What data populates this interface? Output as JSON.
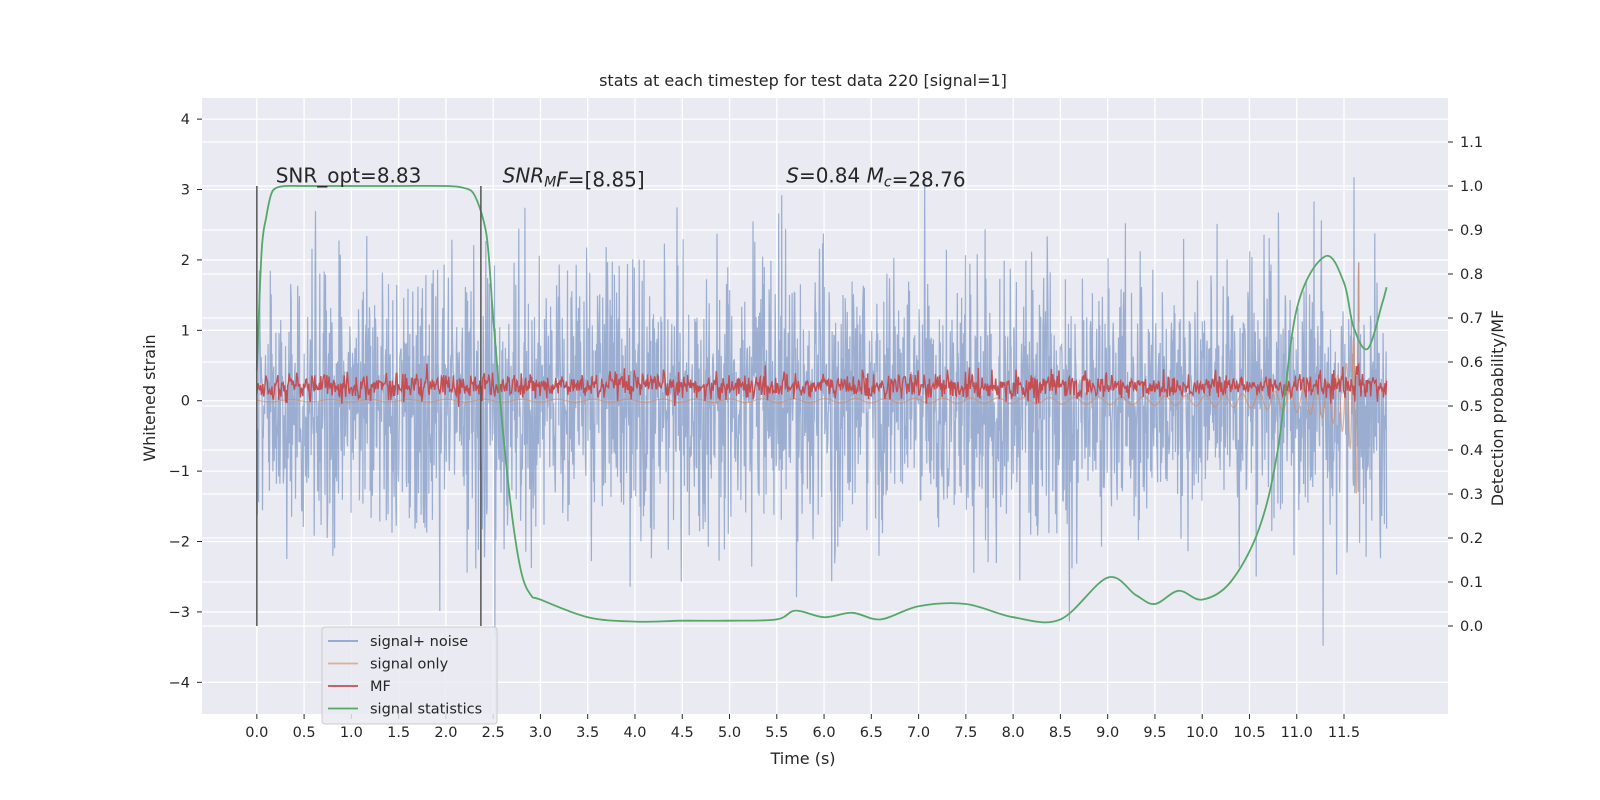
{
  "chart_data": {
    "type": "line",
    "title": "stats at each timestep for test data 220 [signal=1]",
    "xlabel": "Time (s)",
    "ylabel": "Whitened strain",
    "y2label": "Detection probability/MF",
    "xlim": [
      -0.58,
      12.6
    ],
    "ylim": [
      -4.45,
      4.3
    ],
    "y2lim": [
      -0.2,
      1.2
    ],
    "grid": true,
    "background": "#EAEAF2",
    "x_ticks": [
      "0.0",
      "0.5",
      "1.0",
      "1.5",
      "2.0",
      "2.5",
      "3.0",
      "3.5",
      "4.0",
      "4.5",
      "5.0",
      "5.5",
      "6.0",
      "6.5",
      "7.0",
      "7.5",
      "8.0",
      "8.5",
      "9.0",
      "9.5",
      "10.0",
      "10.5",
      "11.0",
      "11.5"
    ],
    "y_ticks": [
      "4",
      "3",
      "2",
      "1",
      "0",
      "−1",
      "−2",
      "−3",
      "−4"
    ],
    "y2_ticks": [
      "1.1",
      "1.0",
      "0.9",
      "0.8",
      "0.7",
      "0.6",
      "0.5",
      "0.4",
      "0.3",
      "0.2",
      "0.1",
      "0.0"
    ],
    "annotations": [
      {
        "segments": [
          {
            "text": "SNR_opt=8.83",
            "italic": false
          }
        ],
        "x": 0.2,
        "y": 3.1
      },
      {
        "segments": [
          {
            "text": "SNR",
            "italic": true
          },
          {
            "text": "M",
            "italic": true,
            "sub": true
          },
          {
            "text": "F",
            "italic": true
          },
          {
            "text": "=[8.85]",
            "italic": false
          }
        ],
        "x": 2.6,
        "y": 3.1
      },
      {
        "segments": [
          {
            "text": "S",
            "italic": true
          },
          {
            "text": "=0.84   ",
            "italic": false
          },
          {
            "text": "M",
            "italic": true
          },
          {
            "text": "c",
            "italic": true,
            "sub": true
          },
          {
            "text": "=28.76",
            "italic": false
          }
        ],
        "x": 5.6,
        "y": 3.1
      }
    ],
    "vlines": [
      {
        "x": 0.0,
        "ymin": -3.2,
        "ymax": 3.05,
        "color": "#555555"
      },
      {
        "x": 2.37,
        "ymin": -3.2,
        "ymax": 3.05,
        "color": "#555555"
      }
    ],
    "series": [
      {
        "name": "signal+ noise",
        "color": "#4C72B0",
        "alpha": 0.5,
        "axis": "left",
        "style": "noise",
        "t_start": 0.0,
        "t_end": 11.95,
        "sigma": 1.0
      },
      {
        "name": "signal only",
        "color": "#DD8452",
        "alpha": 0.6,
        "axis": "left",
        "style": "chirp",
        "t_start": 0.0,
        "t_end": 11.66,
        "peak_amplitude": 2.0
      },
      {
        "name": "MF",
        "color": "#C44E52",
        "axis": "right",
        "style": "band",
        "t_start": 0.0,
        "t_end": 11.95,
        "center": 0.545,
        "halfwidth": 0.03,
        "peak": {
          "x": 11.65,
          "y": 0.58
        }
      },
      {
        "name": "signal statistics",
        "color": "#55A868",
        "axis": "right",
        "style": "line",
        "x": [
          0.0,
          0.05,
          0.1,
          0.15,
          0.2,
          0.3,
          0.5,
          1.0,
          1.5,
          2.0,
          2.2,
          2.3,
          2.4,
          2.45,
          2.5,
          2.6,
          2.7,
          2.8,
          2.9,
          3.0,
          3.5,
          4.0,
          4.5,
          5.0,
          5.5,
          5.7,
          6.0,
          6.3,
          6.6,
          7.0,
          7.5,
          8.0,
          8.5,
          9.0,
          9.3,
          9.5,
          9.75,
          10.0,
          10.3,
          10.6,
          10.8,
          11.0,
          11.3,
          11.5,
          11.6,
          11.75,
          11.9,
          11.95
        ],
        "y": [
          0.58,
          0.85,
          0.93,
          0.98,
          0.995,
          1.0,
          1.0,
          1.0,
          1.0,
          1.0,
          0.995,
          0.98,
          0.92,
          0.85,
          0.7,
          0.45,
          0.25,
          0.12,
          0.07,
          0.06,
          0.02,
          0.01,
          0.012,
          0.012,
          0.015,
          0.035,
          0.02,
          0.03,
          0.015,
          0.045,
          0.05,
          0.02,
          0.015,
          0.11,
          0.07,
          0.05,
          0.08,
          0.06,
          0.1,
          0.22,
          0.4,
          0.72,
          0.84,
          0.78,
          0.68,
          0.63,
          0.73,
          0.77
        ]
      }
    ],
    "legend": {
      "placement": "lower-left",
      "entries": [
        "signal+ noise",
        "signal only",
        "MF",
        "signal statistics"
      ]
    }
  }
}
